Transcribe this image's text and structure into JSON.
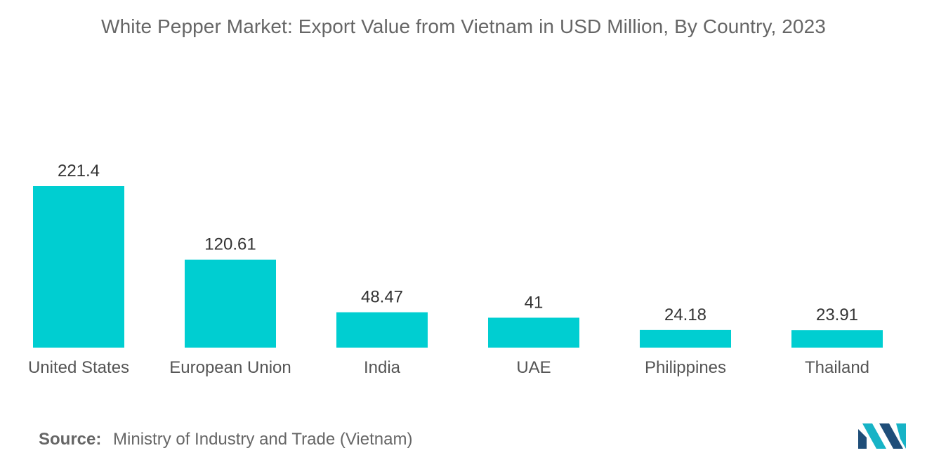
{
  "chart_data": {
    "type": "bar",
    "title": "White Pepper Market: Export Value from Vietnam in USD Million, By Country, 2023",
    "categories": [
      "United States",
      "European Union",
      "India",
      "UAE",
      "Philippines",
      "Thailand"
    ],
    "values": [
      221.4,
      120.61,
      48.47,
      41,
      24.18,
      23.91
    ],
    "value_labels": [
      "221.4",
      "120.61",
      "48.47",
      "41",
      "24.18",
      "23.91"
    ],
    "xlabel": "",
    "ylabel": "",
    "ylim": [
      0,
      221.4
    ],
    "grid": false,
    "legend": "none",
    "bar_color": "#00CED1"
  },
  "source": {
    "label": "Source:",
    "text": "Ministry of Industry and Trade (Vietnam)"
  },
  "logo": {
    "icon": "mordor-intelligence-logo-icon",
    "colors": [
      "#1F4E79",
      "#17B3C6"
    ]
  }
}
